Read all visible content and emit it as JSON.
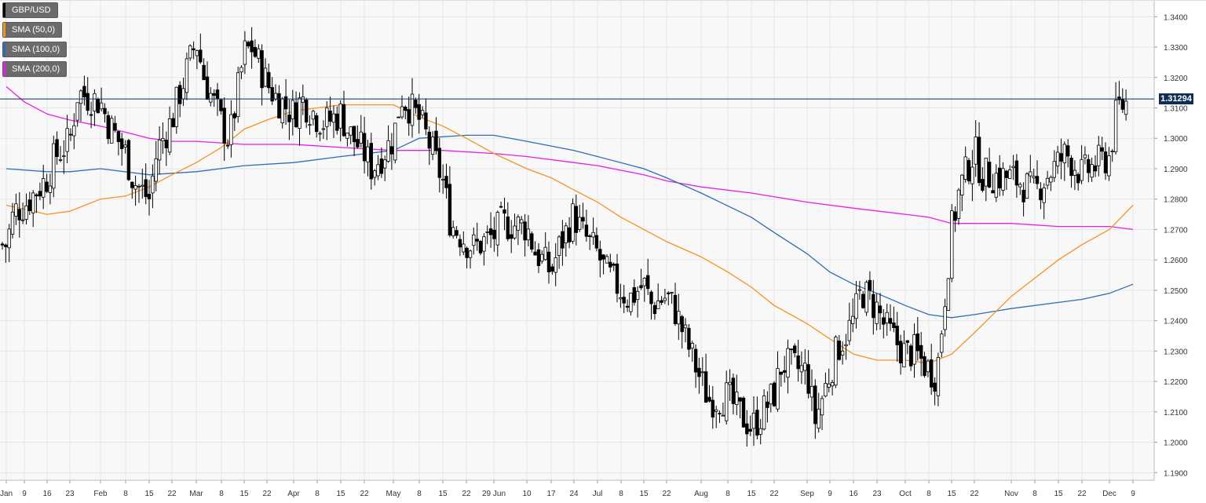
{
  "chart_data": {
    "type": "candlestick",
    "symbol": "GBP/USD",
    "current_price_label": "1.31294",
    "current_price": 1.31294,
    "y_ticks": [
      "1.3400",
      "1.3300",
      "1.3200",
      "1.3100",
      "1.3000",
      "1.2900",
      "1.2800",
      "1.2700",
      "1.2600",
      "1.2500",
      "1.2400",
      "1.2300",
      "1.2200",
      "1.2100",
      "1.2000",
      "1.1900"
    ],
    "ylim": [
      1.1875,
      1.3455
    ],
    "x_ticks": [
      "Jan",
      "9",
      "16",
      "23",
      "Feb",
      "8",
      "15",
      "22",
      "Mar",
      "8",
      "15",
      "22",
      "Apr",
      "8",
      "15",
      "22",
      "May",
      "8",
      "15",
      "22",
      "29 Jun",
      "10",
      "17",
      "24",
      "Jul",
      "8",
      "15",
      "22",
      "Aug",
      "8",
      "15",
      "22",
      "Sep",
      "9",
      "16",
      "23",
      "Oct",
      "8",
      "15",
      "22",
      "Nov",
      "8",
      "15",
      "22",
      "Dec",
      "9"
    ],
    "grid": true,
    "legend_position": "top-left",
    "colors": {
      "up_candle": "#ffffff",
      "down_candle": "#000000",
      "sma50": "#f7931e",
      "sma100": "#2e6db4",
      "sma200": "#e81ee8",
      "price_line": "#0f2e55",
      "grid": "#e6e6e6",
      "plot_bg": "#f8f8f9"
    },
    "series": [
      {
        "name": "GBP/USD",
        "key": "price"
      },
      {
        "name": "SMA (50,0)",
        "key": "sma50",
        "color": "#f7931e"
      },
      {
        "name": "SMA (100,0)",
        "key": "sma100",
        "color": "#2e6db4"
      },
      {
        "name": "SMA (200,0)",
        "key": "sma200",
        "color": "#e81ee8"
      }
    ],
    "close_path": [
      [
        "Jan",
        1.265
      ],
      [
        "Jan",
        1.276
      ],
      [
        "9",
        1.278
      ],
      [
        "16",
        1.287
      ],
      [
        "16",
        1.294
      ],
      [
        "23",
        1.299
      ],
      [
        "23",
        1.315
      ],
      [
        "Feb",
        1.312
      ],
      [
        "Feb",
        1.305
      ],
      [
        "8",
        1.295
      ],
      [
        "8",
        1.286
      ],
      [
        "15",
        1.28
      ],
      [
        "15",
        1.296
      ],
      [
        "22",
        1.306
      ],
      [
        "22",
        1.315
      ],
      [
        "Mar",
        1.332
      ],
      [
        "Mar",
        1.32
      ],
      [
        "8",
        1.305
      ],
      [
        "8",
        1.299
      ],
      [
        "15",
        1.328
      ],
      [
        "15",
        1.33
      ],
      [
        "22",
        1.318
      ],
      [
        "22",
        1.314
      ],
      [
        "Apr",
        1.308
      ],
      [
        "Apr",
        1.313
      ],
      [
        "8",
        1.307
      ],
      [
        "8",
        1.305
      ],
      [
        "15",
        1.308
      ],
      [
        "15",
        1.302
      ],
      [
        "22",
        1.295
      ],
      [
        "22",
        1.29
      ],
      [
        "May",
        1.3
      ],
      [
        "May",
        1.314
      ],
      [
        "8",
        1.306
      ],
      [
        "8",
        1.3
      ],
      [
        "15",
        1.286
      ],
      [
        "15",
        1.272
      ],
      [
        "22",
        1.266
      ],
      [
        "22",
        1.264
      ],
      [
        "29 Jun",
        1.268
      ],
      [
        "29 Jun",
        1.272
      ],
      [
        "10",
        1.271
      ],
      [
        "10",
        1.263
      ],
      [
        "17",
        1.256
      ],
      [
        "17",
        1.264
      ],
      [
        "24",
        1.275
      ],
      [
        "24",
        1.269
      ],
      [
        "Jul",
        1.262
      ],
      [
        "Jul",
        1.256
      ],
      [
        "8",
        1.25
      ],
      [
        "8",
        1.247
      ],
      [
        "15",
        1.252
      ],
      [
        "15",
        1.245
      ],
      [
        "22",
        1.248
      ],
      [
        "22",
        1.244
      ],
      [
        "Aug",
        1.22
      ],
      [
        "Aug",
        1.214
      ],
      [
        "8",
        1.215
      ],
      [
        "8",
        1.211
      ],
      [
        "15",
        1.205
      ],
      [
        "15",
        1.208
      ],
      [
        "22",
        1.216
      ],
      [
        "22",
        1.226
      ],
      [
        "Sep",
        1.223
      ],
      [
        "Sep",
        1.207
      ],
      [
        "9",
        1.223
      ],
      [
        "9",
        1.231
      ],
      [
        "16",
        1.24
      ],
      [
        "16",
        1.25
      ],
      [
        "23",
        1.244
      ],
      [
        "23",
        1.238
      ],
      [
        "Oct",
        1.229
      ],
      [
        "Oct",
        1.23
      ],
      [
        "8",
        1.224
      ],
      [
        "8",
        1.222
      ],
      [
        "15",
        1.27
      ],
      [
        "15",
        1.283
      ],
      [
        "22",
        1.296
      ],
      [
        "22",
        1.288
      ],
      [
        "Nov",
        1.287
      ],
      [
        "Nov",
        1.286
      ],
      [
        "8",
        1.282
      ],
      [
        "8",
        1.286
      ],
      [
        "15",
        1.292
      ],
      [
        "15",
        1.295
      ],
      [
        "22",
        1.288
      ],
      [
        "22",
        1.29
      ],
      [
        "Dec",
        1.294
      ],
      [
        "Dec",
        1.31
      ],
      [
        "9",
        1.3129
      ]
    ],
    "sma50_path": [
      [
        "Jan",
        1.278
      ],
      [
        "16",
        1.275
      ],
      [
        "23",
        1.276
      ],
      [
        "Feb",
        1.28
      ],
      [
        "8",
        1.281
      ],
      [
        "15",
        1.284
      ],
      [
        "22",
        1.288
      ],
      [
        "Mar",
        1.292
      ],
      [
        "8",
        1.297
      ],
      [
        "15",
        1.303
      ],
      [
        "22",
        1.306
      ],
      [
        "Apr",
        1.309
      ],
      [
        "8",
        1.31
      ],
      [
        "15",
        1.311
      ],
      [
        "22",
        1.311
      ],
      [
        "May",
        1.311
      ],
      [
        "8",
        1.307
      ],
      [
        "15",
        1.304
      ],
      [
        "22",
        1.3
      ],
      [
        "29 Jun",
        1.295
      ],
      [
        "10",
        1.29
      ],
      [
        "17",
        1.287
      ],
      [
        "24",
        1.283
      ],
      [
        "Jul",
        1.279
      ],
      [
        "8",
        1.274
      ],
      [
        "15",
        1.27
      ],
      [
        "22",
        1.266
      ],
      [
        "Aug",
        1.261
      ],
      [
        "8",
        1.256
      ],
      [
        "15",
        1.251
      ],
      [
        "22",
        1.245
      ],
      [
        "Sep",
        1.239
      ],
      [
        "9",
        1.234
      ],
      [
        "16",
        1.229
      ],
      [
        "23",
        1.227
      ],
      [
        "Oct",
        1.227
      ],
      [
        "8",
        1.226
      ],
      [
        "15",
        1.229
      ],
      [
        "22",
        1.236
      ],
      [
        "Nov",
        1.248
      ],
      [
        "8",
        1.254
      ],
      [
        "15",
        1.26
      ],
      [
        "22",
        1.265
      ],
      [
        "Dec",
        1.27
      ],
      [
        "9",
        1.278
      ]
    ],
    "sma100_path": [
      [
        "Jan",
        1.29
      ],
      [
        "16",
        1.289
      ],
      [
        "23",
        1.289
      ],
      [
        "Feb",
        1.29
      ],
      [
        "15",
        1.288
      ],
      [
        "Mar",
        1.289
      ],
      [
        "15",
        1.291
      ],
      [
        "Apr",
        1.292
      ],
      [
        "15",
        1.294
      ],
      [
        "May",
        1.296
      ],
      [
        "8",
        1.3
      ],
      [
        "22",
        1.301
      ],
      [
        "29 Jun",
        1.301
      ],
      [
        "10",
        1.299
      ],
      [
        "24",
        1.296
      ],
      [
        "Jul",
        1.294
      ],
      [
        "15",
        1.29
      ],
      [
        "22",
        1.287
      ],
      [
        "Aug",
        1.282
      ],
      [
        "15",
        1.274
      ],
      [
        "22",
        1.269
      ],
      [
        "Sep",
        1.262
      ],
      [
        "9",
        1.256
      ],
      [
        "16",
        1.252
      ],
      [
        "23",
        1.249
      ],
      [
        "Oct",
        1.245
      ],
      [
        "8",
        1.242
      ],
      [
        "15",
        1.241
      ],
      [
        "22",
        1.242
      ],
      [
        "Nov",
        1.244
      ],
      [
        "15",
        1.246
      ],
      [
        "22",
        1.247
      ],
      [
        "Dec",
        1.249
      ],
      [
        "9",
        1.252
      ]
    ],
    "sma200_path": [
      [
        "Jan",
        1.317
      ],
      [
        "9",
        1.312
      ],
      [
        "16",
        1.308
      ],
      [
        "23",
        1.306
      ],
      [
        "Feb",
        1.304
      ],
      [
        "8",
        1.302
      ],
      [
        "15",
        1.3
      ],
      [
        "22",
        1.299
      ],
      [
        "Mar",
        1.299
      ],
      [
        "15",
        1.298
      ],
      [
        "Apr",
        1.298
      ],
      [
        "15",
        1.297
      ],
      [
        "May",
        1.296
      ],
      [
        "15",
        1.296
      ],
      [
        "29 Jun",
        1.295
      ],
      [
        "10",
        1.294
      ],
      [
        "24",
        1.292
      ],
      [
        "Jul",
        1.291
      ],
      [
        "15",
        1.288
      ],
      [
        "22",
        1.286
      ],
      [
        "Aug",
        1.284
      ],
      [
        "15",
        1.282
      ],
      [
        "Sep",
        1.279
      ],
      [
        "16",
        1.277
      ],
      [
        "Oct",
        1.275
      ],
      [
        "8",
        1.274
      ],
      [
        "15",
        1.272
      ],
      [
        "22",
        1.272
      ],
      [
        "Nov",
        1.272
      ],
      [
        "15",
        1.271
      ],
      [
        "Dec",
        1.271
      ],
      [
        "9",
        1.27
      ]
    ]
  }
}
